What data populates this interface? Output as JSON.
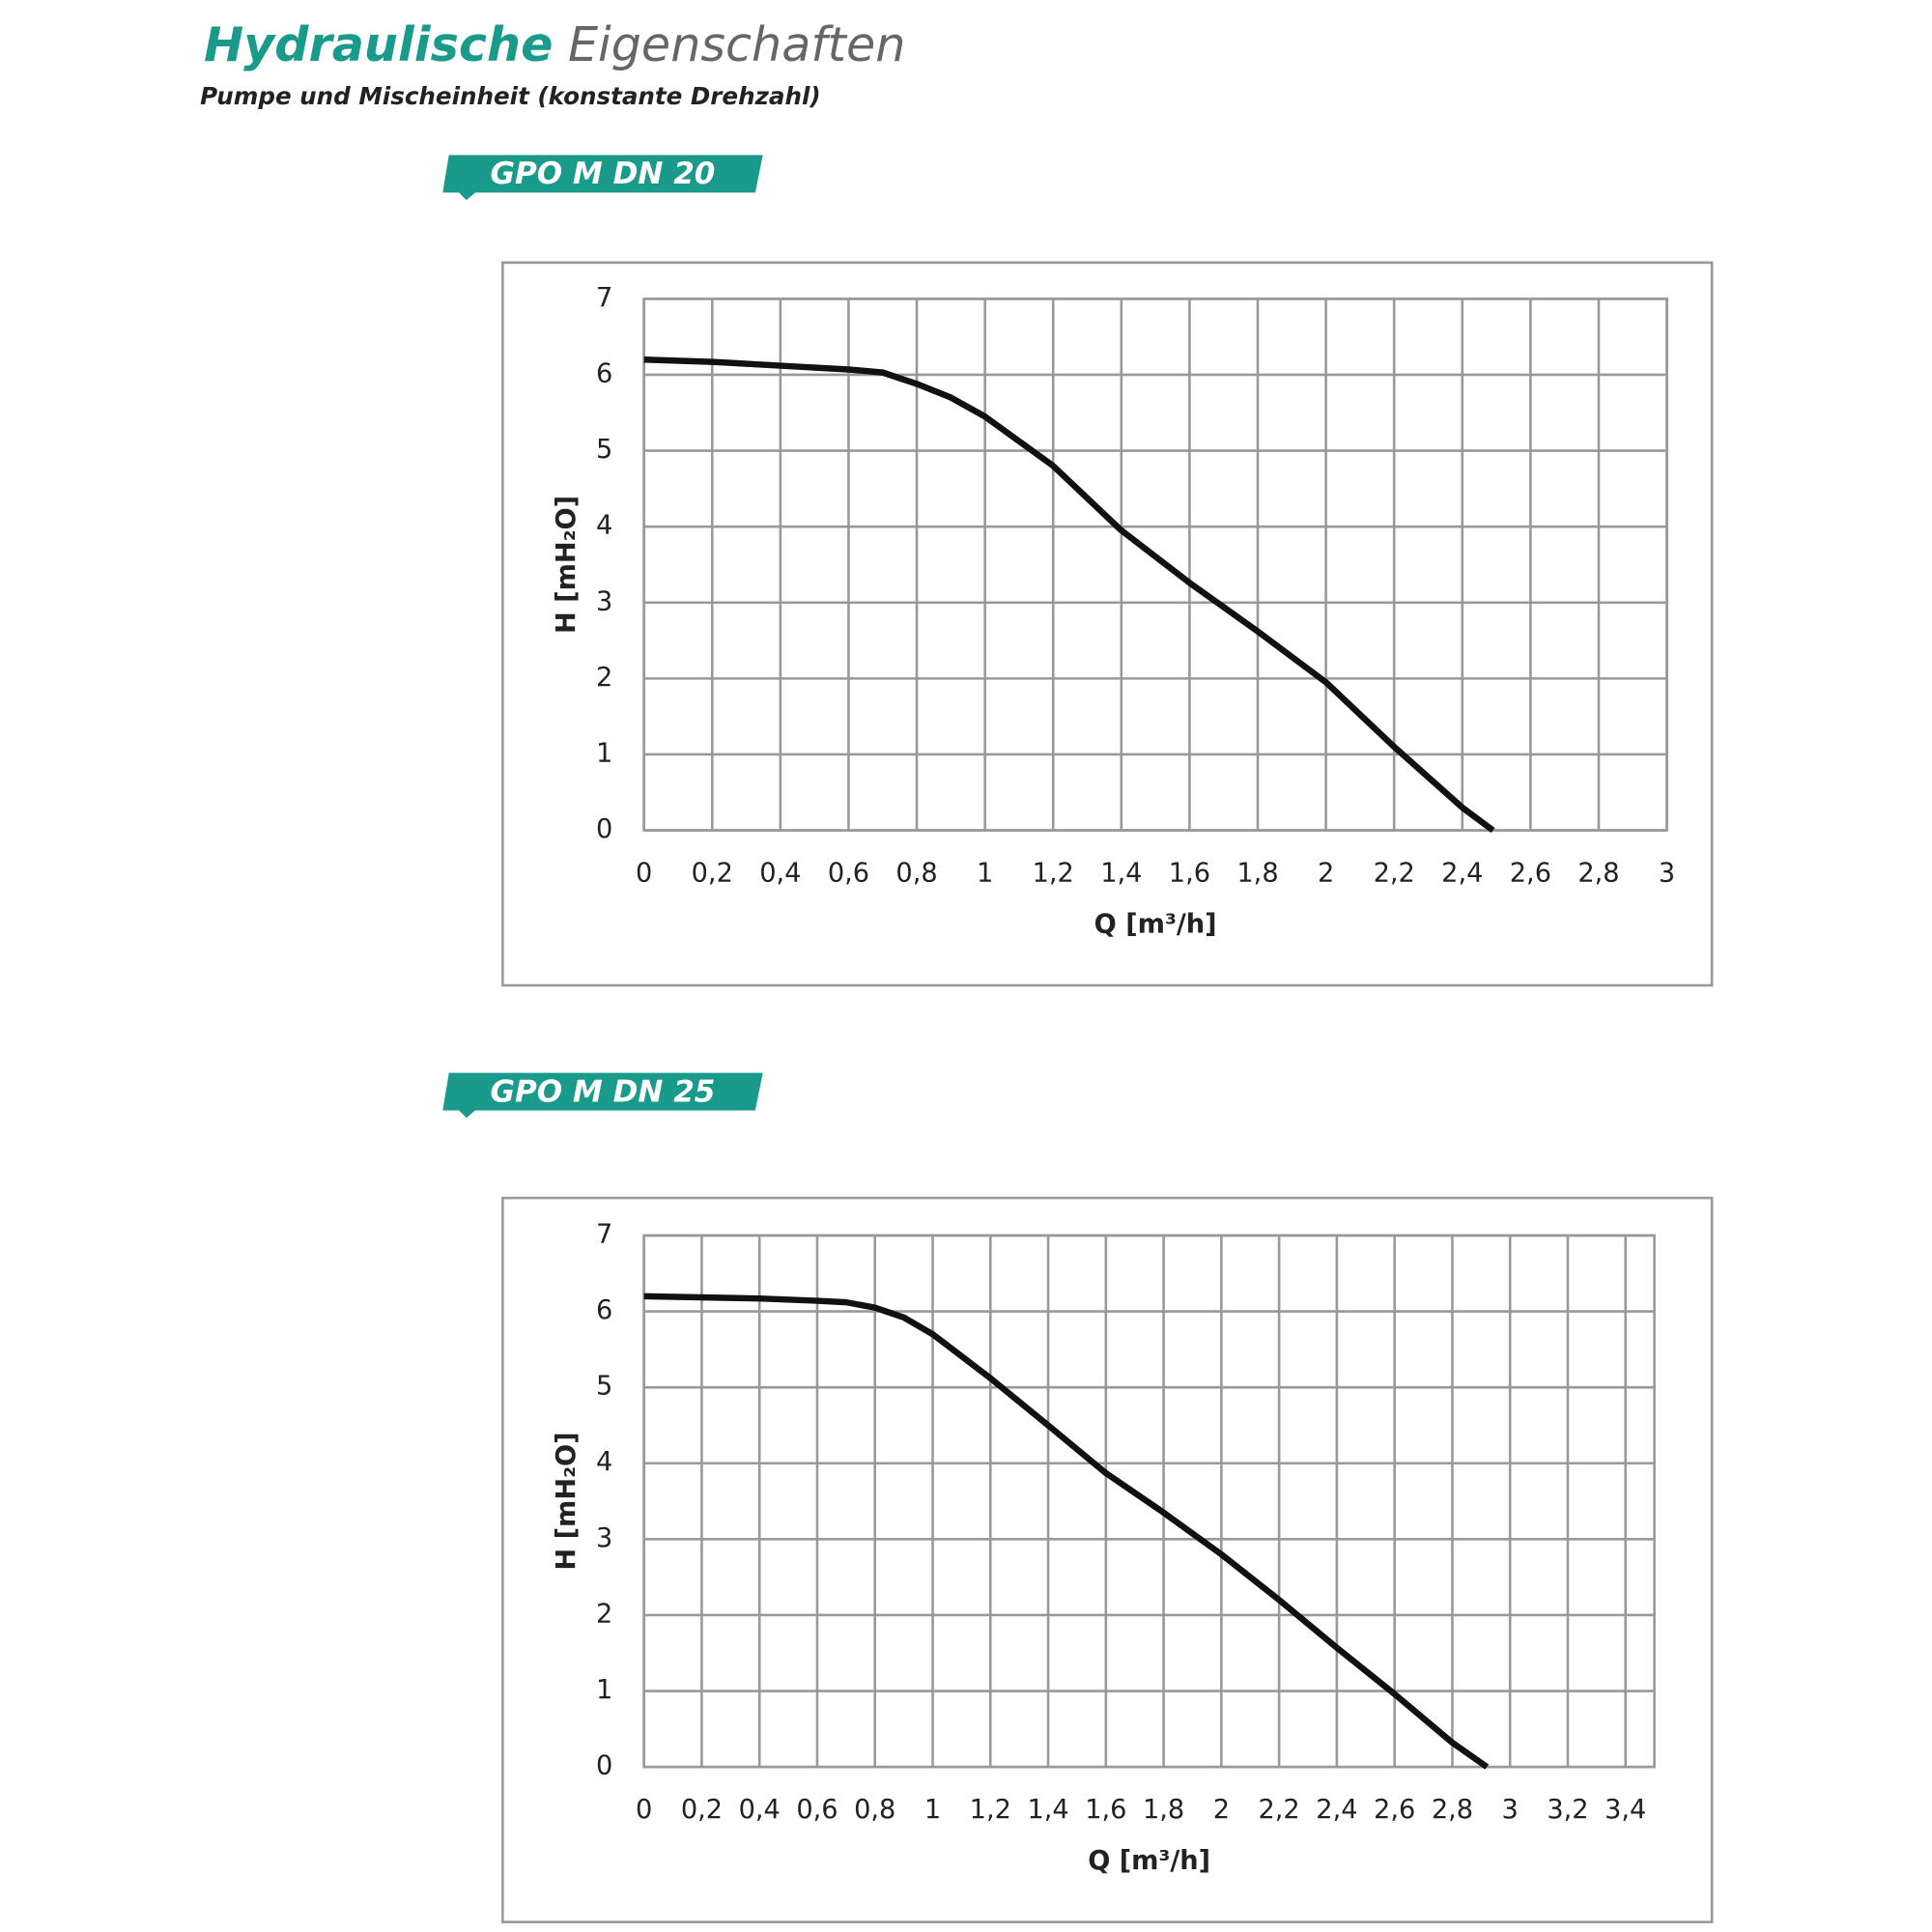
{
  "header": {
    "title_bold": "Hydraulische",
    "title_rest": "Eigenschaften",
    "subtitle": "Pumpe und Mischeinheit (konstante Drehzahl)"
  },
  "chart_data": [
    {
      "type": "line",
      "title": "GPO M DN 20",
      "x_label": "Q [m³/h]",
      "y_label": "H [mH₂O]",
      "color": "#111111",
      "grid": true,
      "xlim": [
        0,
        3
      ],
      "ylim": [
        0,
        7
      ],
      "xticks": [
        0,
        {
          "value": 0.2,
          "label": "0,2"
        },
        {
          "value": 0.4,
          "label": "0,4"
        },
        {
          "value": 0.6,
          "label": "0,6"
        },
        {
          "value": 0.8,
          "label": "0,8"
        },
        1,
        {
          "value": 1.2,
          "label": "1,2"
        },
        {
          "value": 1.4,
          "label": "1,4"
        },
        {
          "value": 1.6,
          "label": "1,6"
        },
        {
          "value": 1.8,
          "label": "1,8"
        },
        2,
        {
          "value": 2.2,
          "label": "2,2"
        },
        {
          "value": 2.4,
          "label": "2,4"
        },
        {
          "value": 2.6,
          "label": "2,6"
        },
        {
          "value": 2.8,
          "label": "2,8"
        },
        3
      ],
      "yticks": [
        0,
        1,
        2,
        3,
        4,
        5,
        6,
        7
      ],
      "x": [
        0,
        0.2,
        0.4,
        0.6,
        0.7,
        0.8,
        0.9,
        1.0,
        1.2,
        1.4,
        1.6,
        1.8,
        2.0,
        2.2,
        2.4,
        2.49
      ],
      "values": [
        6.2,
        6.17,
        6.12,
        6.07,
        6.03,
        5.88,
        5.7,
        5.45,
        4.8,
        3.95,
        3.26,
        2.62,
        1.95,
        1.1,
        0.3,
        0
      ]
    },
    {
      "type": "line",
      "title": "GPO M DN 25",
      "x_label": "Q [m³/h]",
      "y_label": "H [mH₂O]",
      "color": "#111111",
      "grid": true,
      "xlim": [
        0,
        3.5
      ],
      "ylim": [
        0,
        7
      ],
      "xticks": [
        0,
        {
          "value": 0.2,
          "label": "0,2"
        },
        {
          "value": 0.4,
          "label": "0,4"
        },
        {
          "value": 0.6,
          "label": "0,6"
        },
        {
          "value": 0.8,
          "label": "0,8"
        },
        1,
        {
          "value": 1.2,
          "label": "1,2"
        },
        {
          "value": 1.4,
          "label": "1,4"
        },
        {
          "value": 1.6,
          "label": "1,6"
        },
        {
          "value": 1.8,
          "label": "1,8"
        },
        2,
        {
          "value": 2.2,
          "label": "2,2"
        },
        {
          "value": 2.4,
          "label": "2,4"
        },
        {
          "value": 2.6,
          "label": "2,6"
        },
        {
          "value": 2.8,
          "label": "2,8"
        },
        3,
        {
          "value": 3.2,
          "label": "3,2"
        },
        {
          "value": 3.4,
          "label": "3,4"
        }
      ],
      "yticks": [
        0,
        1,
        2,
        3,
        4,
        5,
        6,
        7
      ],
      "x": [
        0,
        0.4,
        0.6,
        0.7,
        0.8,
        0.9,
        1.0,
        1.2,
        1.4,
        1.6,
        1.8,
        2.0,
        2.2,
        2.4,
        2.6,
        2.8,
        2.92
      ],
      "values": [
        6.2,
        6.17,
        6.14,
        6.12,
        6.05,
        5.92,
        5.7,
        5.12,
        4.5,
        3.87,
        3.35,
        2.8,
        2.2,
        1.57,
        0.96,
        0.32,
        0
      ]
    }
  ]
}
